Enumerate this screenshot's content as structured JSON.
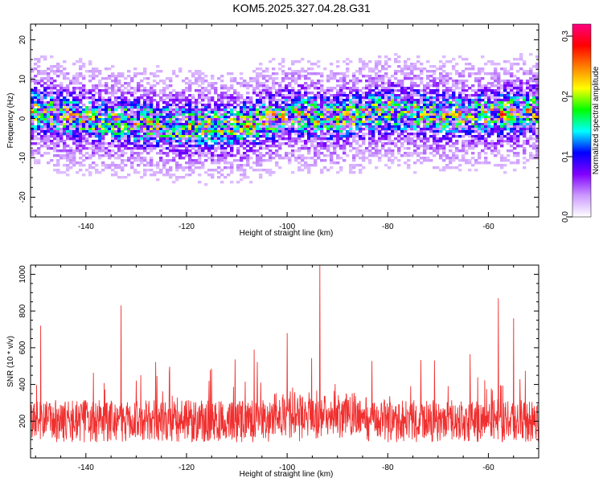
{
  "page": {
    "title": "KOM5.2025.327.04.28.G31"
  },
  "chart_data": [
    {
      "type": "heatmap",
      "name": "spectrogram",
      "title": "KOM5.2025.327.04.28.G31",
      "xlabel": "Height of straight line (km)",
      "ylabel": "Frequency (Hz)",
      "xlim": [
        -151,
        -50
      ],
      "ylim": [
        -25,
        24
      ],
      "xticks": [
        -140,
        -120,
        -100,
        -80,
        -60
      ],
      "yticks": [
        -20,
        -10,
        0,
        10,
        20
      ],
      "colorbar": {
        "label": "Normalized spectral amplitude",
        "range": [
          0,
          0.32
        ],
        "ticks": [
          "0.0",
          "0.1",
          "0.2",
          "0.3"
        ],
        "tick_values": [
          0,
          0.1,
          0.2,
          0.3
        ],
        "colors": [
          "#ffffff",
          "#cc99ff",
          "#8000ff",
          "#0000ff",
          "#00ffff",
          "#00ff00",
          "#ffff00",
          "#ff8000",
          "#ff0000",
          "#ff0080"
        ]
      },
      "band": {
        "center_freq_hz": [
          [
            -151,
            2
          ],
          [
            -140,
            0
          ],
          [
            -120,
            -2
          ],
          [
            -110,
            -2
          ],
          [
            -100,
            1
          ],
          [
            -90,
            0
          ],
          [
            -80,
            2
          ],
          [
            -70,
            1
          ],
          [
            -60,
            1
          ],
          [
            -50,
            2
          ]
        ],
        "peaks": [
          {
            "x": -108,
            "y": -2,
            "amplitude": 0.3
          },
          {
            "x": -94,
            "y": -1,
            "amplitude": 0.28
          },
          {
            "x": -90,
            "y": 0,
            "amplitude": 0.26
          },
          {
            "x": -73,
            "y": 1,
            "amplitude": 0.24
          },
          {
            "x": -57,
            "y": 1,
            "amplitude": 0.32
          },
          {
            "x": -52,
            "y": 2,
            "amplitude": 0.3
          }
        ]
      }
    },
    {
      "type": "line",
      "name": "snr",
      "title": "",
      "xlabel": "Height of straight line (km)",
      "ylabel": "SNR (10 * v/v)",
      "xlim": [
        -151,
        -50
      ],
      "ylim": [
        0,
        1050
      ],
      "xticks": [
        -140,
        -120,
        -100,
        -80,
        -60
      ],
      "yticks": [
        200,
        400,
        600,
        800,
        1000
      ],
      "color": "#f03030",
      "baseline": 200,
      "peaks": [
        {
          "x": -149,
          "y": 720
        },
        {
          "x": -133,
          "y": 830
        },
        {
          "x": -100,
          "y": 680
        },
        {
          "x": -93.5,
          "y": 1050
        },
        {
          "x": -58,
          "y": 870
        },
        {
          "x": -55,
          "y": 760
        }
      ]
    }
  ]
}
